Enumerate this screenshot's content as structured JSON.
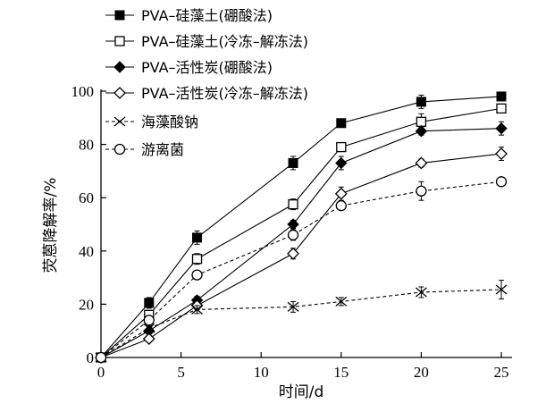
{
  "chart_data": {
    "type": "line",
    "title": "",
    "xlabel": "时间/d",
    "ylabel": "荧蒽降解率/%",
    "xlim": [
      0,
      25
    ],
    "ylim": [
      0,
      100
    ],
    "x_ticks": [
      0,
      5,
      10,
      15,
      20,
      25
    ],
    "y_ticks": [
      0,
      20,
      40,
      60,
      80,
      100
    ],
    "grid": false,
    "legend_position": "top-left",
    "x": [
      0,
      3,
      6,
      12,
      15,
      20,
      25
    ],
    "series": [
      {
        "name": "PVA–硅藻土(硼酸法)",
        "marker": "filled-square",
        "line_style": "solid",
        "values": [
          0,
          20.5,
          45,
          73,
          88,
          96,
          98
        ],
        "error": [
          0,
          2,
          2.5,
          2.5,
          1,
          2.5,
          1
        ]
      },
      {
        "name": "PVA–硅藻土(冷冻–解冻法)",
        "marker": "open-square",
        "line_style": "solid",
        "values": [
          0,
          16,
          37,
          57.5,
          79,
          88.5,
          93.5
        ],
        "error": [
          0,
          1.5,
          2,
          2,
          1,
          3,
          1.5
        ]
      },
      {
        "name": "PVA–活性炭(硼酸法)",
        "marker": "filled-diamond",
        "line_style": "solid",
        "values": [
          0,
          10,
          21.5,
          50,
          73,
          85,
          86
        ],
        "error": [
          0,
          1,
          1.5,
          1.5,
          2.5,
          1.5,
          2.5
        ]
      },
      {
        "name": "PVA–活性炭(冷冻–解冻法)",
        "marker": "open-diamond",
        "line_style": "solid",
        "values": [
          0,
          7,
          19.5,
          39,
          61.5,
          73,
          76.5
        ],
        "error": [
          0,
          1,
          1.5,
          2,
          2.5,
          1.5,
          2.5
        ]
      },
      {
        "name": "海藻酸钠",
        "marker": "x-cross",
        "line_style": "dashed",
        "values": [
          0,
          11,
          18,
          19,
          21,
          24.5,
          25.5
        ],
        "error": [
          0,
          1,
          1.5,
          2,
          1.5,
          2,
          3.5
        ]
      },
      {
        "name": "游离菌",
        "marker": "open-circle",
        "line_style": "dashed",
        "values": [
          0,
          14,
          31,
          46,
          57,
          62.5,
          66
        ],
        "error": [
          0,
          1.5,
          1.5,
          2,
          1.5,
          3.5,
          1
        ]
      }
    ]
  }
}
